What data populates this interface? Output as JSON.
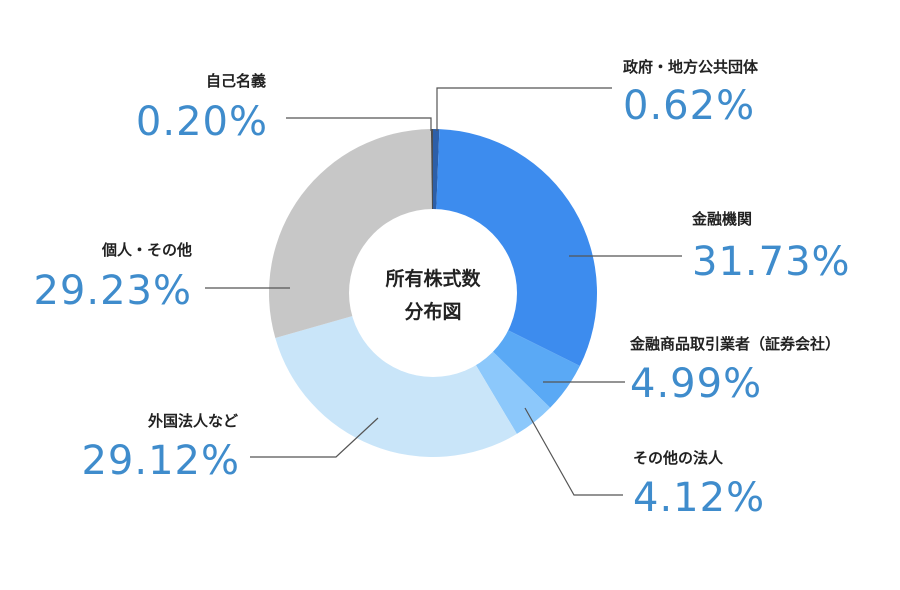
{
  "chart_data": {
    "type": "pie",
    "title": "所有株式数分布図",
    "title_lines": [
      "所有株式数",
      "分布図"
    ],
    "slices": [
      {
        "name": "政府・地方公共団体",
        "value": 0.62,
        "label": "0.62%",
        "color": "#2d5fa8"
      },
      {
        "name": "金融機関",
        "value": 31.73,
        "label": "31.73%",
        "color": "#3d8cee"
      },
      {
        "name": "金融商品取引業者（証券会社）",
        "value": 4.99,
        "label": "4.99%",
        "color": "#5aa9f5"
      },
      {
        "name": "その他の法人",
        "value": 4.12,
        "label": "4.12%",
        "color": "#8cc8fb"
      },
      {
        "name": "外国法人など",
        "value": 29.12,
        "label": "29.12%",
        "color": "#c9e5f9"
      },
      {
        "name": "個人・その他",
        "value": 29.23,
        "label": "29.23%",
        "color": "#c7c7c7"
      },
      {
        "name": "自己名義",
        "value": 0.2,
        "label": "0.20%",
        "color": "#4d4d4d"
      }
    ]
  }
}
